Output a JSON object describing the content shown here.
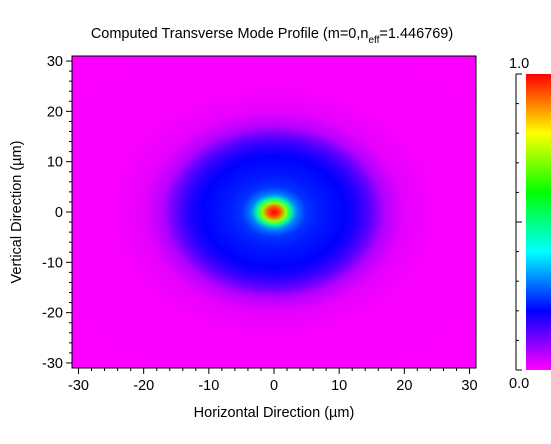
{
  "chart_data": {
    "type": "heatmap",
    "title_main": "Computed Transverse Mode Profile (m=0,n",
    "title_sub": "eff",
    "title_tail": "=1.446769)",
    "xlabel_pre": "Horizontal Direction (",
    "xlabel_unit": "µm",
    "xlabel_post": ")",
    "ylabel_pre": "Vertical Direction (",
    "ylabel_unit": "µm",
    "ylabel_post": ")",
    "xlim": [
      -31,
      31
    ],
    "ylim": [
      -31,
      31
    ],
    "xticks": [
      "-30",
      "-20",
      "-10",
      "0",
      "10",
      "20",
      "30"
    ],
    "xtick_values": [
      -30,
      -20,
      -10,
      0,
      10,
      20,
      30
    ],
    "yticks": [
      "30",
      "20",
      "10",
      "0",
      "-10",
      "-20",
      "-30"
    ],
    "ytick_values": [
      30,
      20,
      10,
      0,
      -10,
      -20,
      -30
    ],
    "colorbar": {
      "max_label": "1.0",
      "min_label": "0.0",
      "range": [
        0.0,
        1.0
      ]
    },
    "field": {
      "description": "intensity vs radius r (µm), radially symmetric",
      "radius": [
        0,
        1,
        1.8,
        2.6,
        3.5,
        5,
        7,
        9,
        11,
        12.5,
        14,
        15.5,
        17,
        20,
        25,
        45
      ],
      "intensity": [
        1.0,
        0.93,
        0.72,
        0.48,
        0.3,
        0.24,
        0.22,
        0.21,
        0.2,
        0.18,
        0.15,
        0.11,
        0.06,
        0.02,
        0.005,
        0.0
      ]
    },
    "colormap": [
      "#ff00ff",
      "#0000ff",
      "#00ffff",
      "#00ff00",
      "#ffff00",
      "#ff0000"
    ]
  }
}
